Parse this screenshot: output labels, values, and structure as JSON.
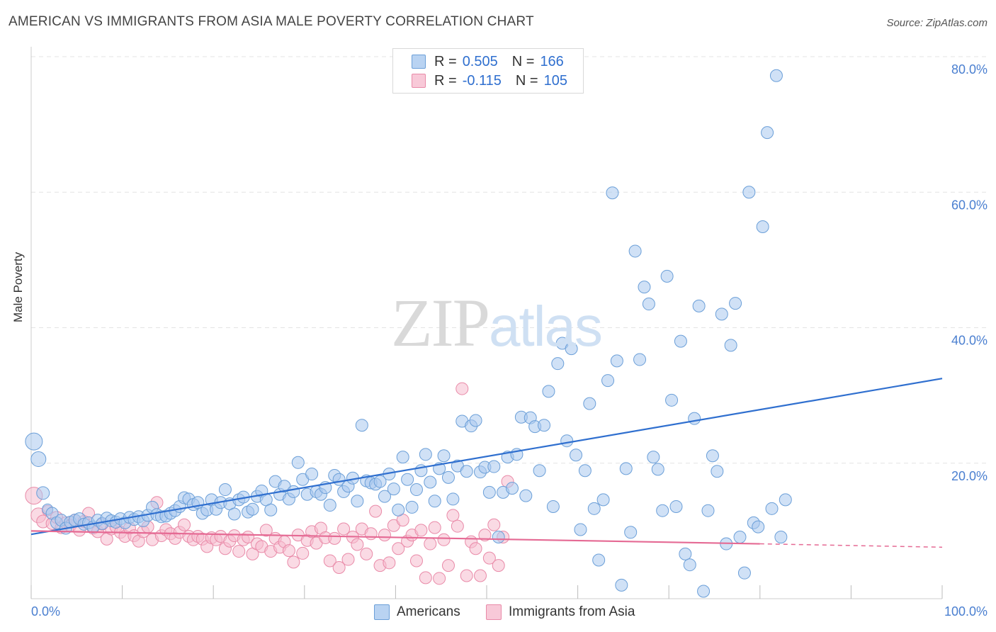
{
  "header": {
    "title": "AMERICAN VS IMMIGRANTS FROM ASIA MALE POVERTY CORRELATION CHART",
    "source": "Source: ZipAtlas.com"
  },
  "watermark": {
    "zip": "ZIP",
    "atlas": "atlas"
  },
  "legend": {
    "rows": [
      {
        "r_label": "R = ",
        "r_value": "0.505",
        "n_label": "N = ",
        "n_value": "166"
      },
      {
        "r_label": "R = ",
        "r_value": "-0.115",
        "n_label": "N = ",
        "n_value": "105"
      }
    ]
  },
  "bottom_legend": {
    "americans": "Americans",
    "immigrants": "Immigrants from Asia"
  },
  "colors": {
    "blue_fill": "#a9c9ef",
    "blue_stroke": "#6b9fd8",
    "blue_line": "#2f6fcf",
    "pink_fill": "#f6bccd",
    "pink_stroke": "#e98aa8",
    "pink_line": "#e56a94",
    "tick_text": "#4a7fd0",
    "grid": "#e3e3e3"
  },
  "chart_data": {
    "type": "scatter",
    "title": "AMERICAN VS IMMIGRANTS FROM ASIA MALE POVERTY CORRELATION CHART",
    "xlabel": "",
    "ylabel": "Male Poverty",
    "xlim": [
      0,
      100
    ],
    "ylim": [
      0,
      80
    ],
    "x_tick_labels": [
      "0.0%",
      "100.0%"
    ],
    "y_ticks": [
      20,
      40,
      60,
      80
    ],
    "y_tick_labels": [
      "20.0%",
      "40.0%",
      "60.0%",
      "80.0%"
    ],
    "grid": true,
    "series": [
      {
        "name": "Americans",
        "color": "#6b9fd8",
        "r": 0.505,
        "n": 166,
        "trend": {
          "x": [
            0,
            100
          ],
          "y": [
            9.5,
            32.5
          ]
        },
        "points": [
          [
            0.3,
            23.2
          ],
          [
            0.8,
            20.6
          ],
          [
            1.3,
            15.6
          ],
          [
            1.8,
            13.2
          ],
          [
            2.3,
            12.6
          ],
          [
            2.8,
            11.2
          ],
          [
            3.3,
            11.6
          ],
          [
            3.8,
            10.4
          ],
          [
            4.3,
            11.3
          ],
          [
            4.8,
            11.6
          ],
          [
            5.3,
            11.8
          ],
          [
            5.8,
            11.0
          ],
          [
            6.3,
            11.2
          ],
          [
            6.8,
            10.6
          ],
          [
            7.3,
            11.6
          ],
          [
            7.8,
            11.1
          ],
          [
            8.3,
            11.9
          ],
          [
            8.8,
            11.5
          ],
          [
            9.3,
            11.3
          ],
          [
            9.8,
            11.8
          ],
          [
            10.3,
            11.2
          ],
          [
            10.8,
            12.0
          ],
          [
            11.3,
            11.7
          ],
          [
            11.8,
            12.1
          ],
          [
            12.3,
            11.5
          ],
          [
            12.8,
            12.3
          ],
          [
            13.3,
            13.5
          ],
          [
            13.8,
            12.4
          ],
          [
            14.3,
            12.1
          ],
          [
            14.8,
            12.2
          ],
          [
            15.3,
            12.6
          ],
          [
            15.8,
            13.0
          ],
          [
            16.3,
            13.6
          ],
          [
            16.8,
            14.9
          ],
          [
            17.3,
            14.7
          ],
          [
            17.8,
            13.9
          ],
          [
            18.3,
            14.2
          ],
          [
            18.8,
            12.6
          ],
          [
            19.3,
            13.1
          ],
          [
            19.8,
            14.6
          ],
          [
            20.3,
            13.2
          ],
          [
            20.8,
            14.2
          ],
          [
            21.3,
            16.1
          ],
          [
            21.8,
            14.0
          ],
          [
            22.3,
            12.5
          ],
          [
            22.8,
            14.6
          ],
          [
            23.3,
            15.0
          ],
          [
            23.8,
            12.8
          ],
          [
            24.3,
            13.2
          ],
          [
            24.8,
            15.1
          ],
          [
            25.3,
            15.9
          ],
          [
            25.8,
            14.6
          ],
          [
            26.3,
            13.1
          ],
          [
            26.8,
            17.3
          ],
          [
            27.3,
            15.4
          ],
          [
            27.8,
            16.6
          ],
          [
            28.3,
            14.7
          ],
          [
            28.8,
            15.8
          ],
          [
            29.3,
            20.1
          ],
          [
            29.8,
            17.6
          ],
          [
            30.3,
            15.4
          ],
          [
            30.8,
            18.4
          ],
          [
            31.3,
            15.8
          ],
          [
            31.8,
            15.4
          ],
          [
            32.3,
            16.4
          ],
          [
            32.8,
            13.8
          ],
          [
            33.3,
            18.2
          ],
          [
            33.8,
            17.6
          ],
          [
            34.3,
            15.8
          ],
          [
            34.8,
            16.6
          ],
          [
            35.3,
            17.8
          ],
          [
            35.8,
            14.4
          ],
          [
            36.3,
            25.6
          ],
          [
            36.8,
            17.4
          ],
          [
            37.3,
            17.1
          ],
          [
            37.8,
            16.9
          ],
          [
            38.3,
            17.3
          ],
          [
            38.8,
            15.1
          ],
          [
            39.3,
            18.4
          ],
          [
            39.8,
            16.2
          ],
          [
            40.3,
            13.1
          ],
          [
            40.8,
            20.9
          ],
          [
            41.3,
            17.6
          ],
          [
            41.8,
            13.5
          ],
          [
            42.3,
            16.1
          ],
          [
            42.8,
            18.9
          ],
          [
            43.3,
            21.3
          ],
          [
            43.8,
            17.2
          ],
          [
            44.3,
            14.4
          ],
          [
            44.8,
            19.2
          ],
          [
            45.3,
            21.1
          ],
          [
            45.8,
            17.9
          ],
          [
            46.3,
            14.7
          ],
          [
            46.8,
            19.6
          ],
          [
            47.3,
            26.2
          ],
          [
            47.8,
            18.8
          ],
          [
            48.3,
            25.5
          ],
          [
            48.8,
            26.3
          ],
          [
            49.3,
            18.7
          ],
          [
            49.8,
            19.4
          ],
          [
            50.3,
            15.7
          ],
          [
            50.8,
            19.5
          ],
          [
            51.3,
            9.1
          ],
          [
            51.8,
            15.7
          ],
          [
            52.3,
            20.9
          ],
          [
            52.8,
            16.3
          ],
          [
            53.3,
            21.3
          ],
          [
            53.8,
            26.8
          ],
          [
            54.3,
            15.2
          ],
          [
            54.8,
            26.7
          ],
          [
            55.3,
            25.4
          ],
          [
            55.8,
            18.9
          ],
          [
            56.3,
            25.6
          ],
          [
            56.8,
            30.6
          ],
          [
            57.3,
            13.6
          ],
          [
            57.8,
            34.7
          ],
          [
            58.3,
            37.7
          ],
          [
            58.8,
            23.3
          ],
          [
            59.3,
            36.9
          ],
          [
            59.8,
            21.2
          ],
          [
            60.3,
            10.2
          ],
          [
            60.8,
            18.9
          ],
          [
            61.3,
            28.8
          ],
          [
            61.8,
            13.3
          ],
          [
            62.3,
            5.7
          ],
          [
            62.8,
            14.6
          ],
          [
            63.3,
            32.2
          ],
          [
            63.8,
            59.9
          ],
          [
            64.3,
            35.1
          ],
          [
            64.8,
            2.0
          ],
          [
            65.3,
            19.2
          ],
          [
            65.8,
            9.8
          ],
          [
            66.3,
            51.3
          ],
          [
            66.8,
            35.3
          ],
          [
            67.3,
            46.0
          ],
          [
            67.8,
            43.5
          ],
          [
            68.3,
            20.9
          ],
          [
            68.8,
            19.1
          ],
          [
            69.3,
            13.0
          ],
          [
            69.8,
            47.6
          ],
          [
            70.3,
            29.3
          ],
          [
            70.8,
            13.6
          ],
          [
            71.3,
            38.0
          ],
          [
            71.8,
            6.6
          ],
          [
            72.3,
            5.0
          ],
          [
            72.8,
            26.6
          ],
          [
            73.3,
            43.2
          ],
          [
            73.8,
            1.1
          ],
          [
            74.3,
            13.0
          ],
          [
            74.8,
            21.1
          ],
          [
            75.3,
            18.8
          ],
          [
            75.8,
            42.0
          ],
          [
            76.3,
            8.1
          ],
          [
            76.8,
            37.4
          ],
          [
            77.3,
            43.6
          ],
          [
            77.8,
            9.1
          ],
          [
            78.3,
            3.8
          ],
          [
            78.8,
            60.0
          ],
          [
            79.3,
            11.2
          ],
          [
            79.8,
            10.6
          ],
          [
            80.3,
            54.9
          ],
          [
            80.8,
            68.8
          ],
          [
            81.3,
            13.3
          ],
          [
            81.8,
            77.2
          ],
          [
            82.3,
            9.1
          ],
          [
            82.8,
            14.6
          ]
        ]
      },
      {
        "name": "Immigrants from Asia",
        "color": "#e98aa8",
        "r": -0.115,
        "n": 105,
        "trend": {
          "x": [
            0,
            80,
            100
          ],
          "y": [
            10.0,
            8.1,
            7.6
          ]
        },
        "points": [
          [
            0.3,
            15.2
          ],
          [
            0.8,
            12.3
          ],
          [
            1.3,
            11.4
          ],
          [
            1.8,
            13.0
          ],
          [
            2.3,
            11.1
          ],
          [
            2.8,
            12.0
          ],
          [
            3.3,
            10.5
          ],
          [
            3.8,
            11.2
          ],
          [
            4.3,
            10.8
          ],
          [
            4.8,
            11.6
          ],
          [
            5.3,
            10.1
          ],
          [
            5.8,
            11.4
          ],
          [
            6.3,
            12.6
          ],
          [
            6.8,
            10.4
          ],
          [
            7.3,
            9.9
          ],
          [
            7.8,
            11.0
          ],
          [
            8.3,
            8.8
          ],
          [
            8.8,
            10.3
          ],
          [
            9.3,
            10.6
          ],
          [
            9.8,
            9.8
          ],
          [
            10.3,
            9.2
          ],
          [
            10.8,
            10.4
          ],
          [
            11.3,
            9.3
          ],
          [
            11.8,
            8.5
          ],
          [
            12.3,
            9.9
          ],
          [
            12.8,
            10.6
          ],
          [
            13.3,
            8.7
          ],
          [
            13.8,
            14.2
          ],
          [
            14.3,
            9.3
          ],
          [
            14.8,
            10.2
          ],
          [
            15.3,
            9.6
          ],
          [
            15.8,
            8.9
          ],
          [
            16.3,
            9.8
          ],
          [
            16.8,
            10.9
          ],
          [
            17.3,
            9.2
          ],
          [
            17.8,
            8.7
          ],
          [
            18.3,
            9.2
          ],
          [
            18.8,
            8.8
          ],
          [
            19.3,
            7.7
          ],
          [
            19.8,
            9.0
          ],
          [
            20.3,
            8.7
          ],
          [
            20.8,
            9.2
          ],
          [
            21.3,
            7.4
          ],
          [
            21.8,
            8.5
          ],
          [
            22.3,
            9.3
          ],
          [
            22.8,
            7.0
          ],
          [
            23.3,
            8.7
          ],
          [
            23.8,
            9.1
          ],
          [
            24.3,
            6.6
          ],
          [
            24.8,
            8.1
          ],
          [
            25.3,
            7.7
          ],
          [
            25.8,
            10.1
          ],
          [
            26.3,
            7.0
          ],
          [
            26.8,
            8.9
          ],
          [
            27.3,
            7.6
          ],
          [
            27.8,
            8.4
          ],
          [
            28.3,
            7.1
          ],
          [
            28.8,
            5.4
          ],
          [
            29.3,
            9.4
          ],
          [
            29.8,
            6.7
          ],
          [
            30.3,
            8.6
          ],
          [
            30.8,
            9.9
          ],
          [
            31.3,
            8.2
          ],
          [
            31.8,
            10.4
          ],
          [
            32.3,
            9.0
          ],
          [
            32.8,
            5.6
          ],
          [
            33.3,
            8.9
          ],
          [
            33.8,
            4.6
          ],
          [
            34.3,
            10.3
          ],
          [
            34.8,
            5.8
          ],
          [
            35.3,
            9.1
          ],
          [
            35.8,
            8.0
          ],
          [
            36.3,
            10.3
          ],
          [
            36.8,
            6.6
          ],
          [
            37.3,
            9.6
          ],
          [
            37.8,
            12.9
          ],
          [
            38.3,
            4.9
          ],
          [
            38.8,
            9.4
          ],
          [
            39.3,
            5.3
          ],
          [
            39.8,
            10.8
          ],
          [
            40.3,
            7.4
          ],
          [
            40.8,
            11.6
          ],
          [
            41.3,
            8.5
          ],
          [
            41.8,
            9.4
          ],
          [
            42.3,
            5.6
          ],
          [
            42.8,
            10.1
          ],
          [
            43.3,
            3.1
          ],
          [
            43.8,
            8.1
          ],
          [
            44.3,
            10.5
          ],
          [
            44.8,
            3.0
          ],
          [
            45.3,
            8.7
          ],
          [
            45.8,
            4.9
          ],
          [
            46.3,
            12.3
          ],
          [
            46.8,
            10.7
          ],
          [
            47.3,
            31.0
          ],
          [
            47.8,
            3.4
          ],
          [
            48.3,
            8.4
          ],
          [
            48.8,
            7.4
          ],
          [
            49.3,
            3.4
          ],
          [
            49.8,
            9.4
          ],
          [
            50.3,
            6.0
          ],
          [
            50.8,
            10.9
          ],
          [
            51.3,
            4.9
          ],
          [
            51.8,
            9.1
          ],
          [
            52.3,
            17.3
          ]
        ]
      }
    ]
  }
}
